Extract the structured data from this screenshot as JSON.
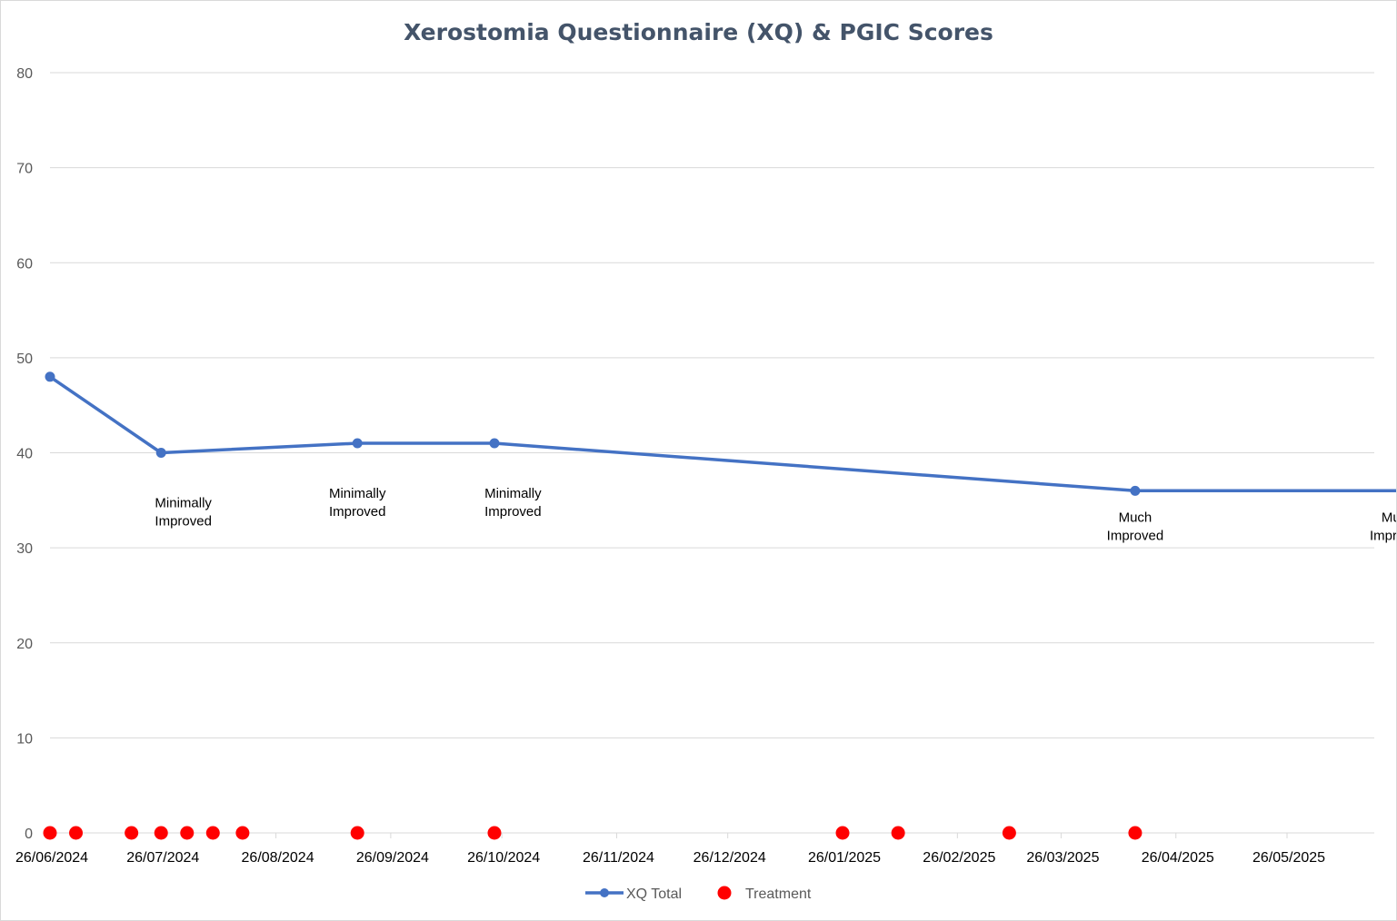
{
  "chart_data": {
    "type": "line",
    "title": "Xerostomia Questionnaire (XQ) & PGIC Scores",
    "xlabel": "",
    "ylabel": "",
    "ylim": [
      0,
      80
    ],
    "ytick_labels": [
      "0",
      "10",
      "20",
      "30",
      "40",
      "50",
      "60",
      "70",
      "80"
    ],
    "x_is_date": true,
    "x_start": "2024-06-26",
    "x_end": "2025-06-26",
    "xtick_labels": [
      {
        "date": "2024-06-26",
        "label": "26/06/2024"
      },
      {
        "date": "2024-07-26",
        "label": "26/07/2024"
      },
      {
        "date": "2024-08-26",
        "label": "26/08/2024"
      },
      {
        "date": "2024-09-26",
        "label": "26/09/2024"
      },
      {
        "date": "2024-10-26",
        "label": "26/10/2024"
      },
      {
        "date": "2024-11-26",
        "label": "26/11/2024"
      },
      {
        "date": "2024-12-26",
        "label": "26/12/2024"
      },
      {
        "date": "2025-01-26",
        "label": "26/01/2025"
      },
      {
        "date": "2025-02-26",
        "label": "26/02/2025"
      },
      {
        "date": "2025-03-26",
        "label": "26/03/2025"
      },
      {
        "date": "2025-04-26",
        "label": "26/04/2025"
      },
      {
        "date": "2025-05-26",
        "label": "26/05/2025"
      }
    ],
    "series": [
      {
        "name": "XQ Total",
        "color": "#4472c4",
        "style": "line-marker",
        "points": [
          {
            "date": "2024-06-26",
            "value": 48
          },
          {
            "date": "2024-07-26",
            "value": 40
          },
          {
            "date": "2024-09-17",
            "value": 41
          },
          {
            "date": "2024-10-24",
            "value": 41
          },
          {
            "date": "2025-04-15",
            "value": 36
          },
          {
            "date": "2025-07-02",
            "value": 36
          }
        ]
      },
      {
        "name": "Treatment",
        "color": "#ff0000",
        "style": "scatter",
        "points": [
          {
            "date": "2024-06-26",
            "value": 0
          },
          {
            "date": "2024-07-03",
            "value": 0
          },
          {
            "date": "2024-07-18",
            "value": 0
          },
          {
            "date": "2024-07-26",
            "value": 0
          },
          {
            "date": "2024-08-02",
            "value": 0
          },
          {
            "date": "2024-08-09",
            "value": 0
          },
          {
            "date": "2024-08-17",
            "value": 0
          },
          {
            "date": "2024-09-17",
            "value": 0
          },
          {
            "date": "2024-10-24",
            "value": 0
          },
          {
            "date": "2025-01-26",
            "value": 0
          },
          {
            "date": "2025-02-10",
            "value": 0
          },
          {
            "date": "2025-03-12",
            "value": 0
          },
          {
            "date": "2025-04-15",
            "value": 0
          },
          {
            "date": "2025-07-02",
            "value": 0
          }
        ]
      }
    ],
    "annotations": [
      {
        "date": "2024-08-01",
        "value": 40,
        "lines": [
          "Minimally",
          "Improved"
        ]
      },
      {
        "date": "2024-09-17",
        "value": 41,
        "lines": [
          "Minimally",
          "Improved"
        ]
      },
      {
        "date": "2024-10-29",
        "value": 41,
        "lines": [
          "Minimally",
          "Improved"
        ]
      },
      {
        "date": "2025-04-15",
        "value": 36,
        "lines": [
          "Much",
          "Improved"
        ]
      },
      {
        "date": "2025-06-25",
        "value": 36,
        "lines": [
          "Much",
          "Improved"
        ]
      }
    ],
    "legend": {
      "position": "bottom",
      "entries": [
        "XQ Total",
        "Treatment"
      ]
    },
    "grid": true
  }
}
